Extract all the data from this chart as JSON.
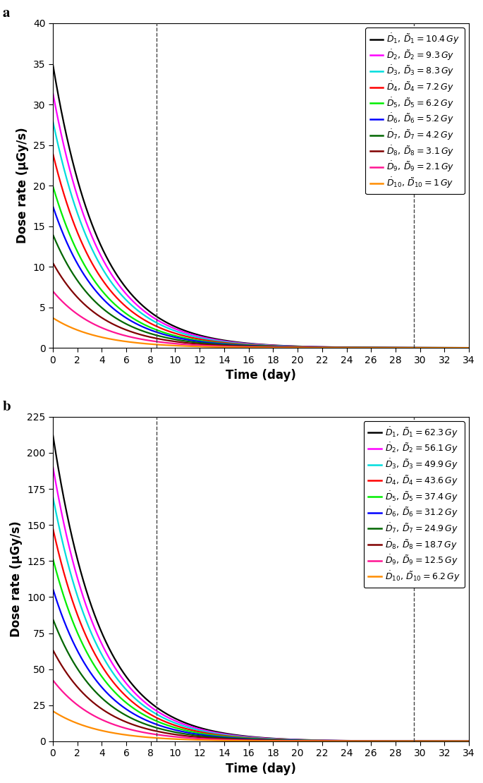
{
  "panel_a": {
    "title": "a",
    "ylabel": "Dose rate (μGy/s)",
    "xlabel": "Time (day)",
    "ylim": [
      0,
      40
    ],
    "yticks": [
      0,
      5,
      10,
      15,
      20,
      25,
      30,
      35,
      40
    ],
    "xlim": [
      0,
      34
    ],
    "xticks": [
      0,
      2,
      4,
      6,
      8,
      10,
      12,
      14,
      16,
      18,
      20,
      22,
      24,
      26,
      28,
      30,
      32,
      34
    ],
    "vlines": [
      8.5,
      29.5
    ],
    "curves": [
      {
        "color": "#000000",
        "D0": 35.0,
        "label": "$\\dot{D}_1,\\, \\tilde{D}_1 = 10.4\\,Gy$"
      },
      {
        "color": "#FF00FF",
        "D0": 31.5,
        "label": "$\\dot{D}_2,\\, \\tilde{D}_2 = 9.3\\,Gy$"
      },
      {
        "color": "#00DDDD",
        "D0": 28.0,
        "label": "$\\dot{D}_3,\\, \\tilde{D}_3 = 8.3\\,Gy$"
      },
      {
        "color": "#FF0000",
        "D0": 24.0,
        "label": "$\\dot{D}_4,\\, \\tilde{D}_4 = 7.2\\,Gy$"
      },
      {
        "color": "#00EE00",
        "D0": 20.0,
        "label": "$\\dot{D}_5,\\, \\tilde{D}_5 = 6.2\\,Gy$"
      },
      {
        "color": "#0000FF",
        "D0": 17.5,
        "label": "$\\dot{D}_6,\\, \\tilde{D}_6 = 5.2\\,Gy$"
      },
      {
        "color": "#006600",
        "D0": 14.0,
        "label": "$\\dot{D}_7,\\, \\tilde{D}_7 = 4.2\\,Gy$"
      },
      {
        "color": "#800000",
        "D0": 10.5,
        "label": "$\\dot{D}_8,\\, \\tilde{D}_8 = 3.1\\,Gy$"
      },
      {
        "color": "#FF1493",
        "D0": 7.0,
        "label": "$\\dot{D}_9,\\, \\tilde{D}_9 = 2.1\\,Gy$"
      },
      {
        "color": "#FF8C00",
        "D0": 3.7,
        "label": "$\\dot{D}_{10},\\, \\tilde{D}_{10} = 1\\,Gy$"
      }
    ]
  },
  "panel_b": {
    "title": "b",
    "ylabel": "Dose rate (μGy/s)",
    "xlabel": "Time (day)",
    "ylim": [
      0,
      225
    ],
    "yticks": [
      0,
      25,
      50,
      75,
      100,
      125,
      150,
      175,
      200,
      225
    ],
    "xlim": [
      0,
      34
    ],
    "xticks": [
      0,
      2,
      4,
      6,
      8,
      10,
      12,
      14,
      16,
      18,
      20,
      22,
      24,
      26,
      28,
      30,
      32,
      34
    ],
    "vlines": [
      8.5,
      29.5
    ],
    "curves": [
      {
        "color": "#000000",
        "D0": 213.0,
        "label": "$\\dot{D}_1,\\, \\tilde{D}_1 = 62.3\\,Gy$"
      },
      {
        "color": "#FF00FF",
        "D0": 191.0,
        "label": "$\\dot{D}_2,\\, \\tilde{D}_2 = 56.1\\,Gy$"
      },
      {
        "color": "#00DDDD",
        "D0": 170.0,
        "label": "$\\dot{D}_3,\\, \\tilde{D}_3 = 49.9\\,Gy$"
      },
      {
        "color": "#FF0000",
        "D0": 148.0,
        "label": "$\\dot{D}_4,\\, \\tilde{D}_4 = 43.6\\,Gy$"
      },
      {
        "color": "#00EE00",
        "D0": 127.0,
        "label": "$\\dot{D}_5,\\, \\tilde{D}_5 = 37.4\\,Gy$"
      },
      {
        "color": "#0000FF",
        "D0": 106.0,
        "label": "$\\dot{D}_6,\\, \\tilde{D}_6 = 31.2\\,Gy$"
      },
      {
        "color": "#006600",
        "D0": 85.0,
        "label": "$\\dot{D}_7,\\, \\tilde{D}_7 = 24.9\\,Gy$"
      },
      {
        "color": "#800000",
        "D0": 63.5,
        "label": "$\\dot{D}_8,\\, \\tilde{D}_8 = 18.7\\,Gy$"
      },
      {
        "color": "#FF1493",
        "D0": 42.5,
        "label": "$\\dot{D}_9,\\, \\tilde{D}_9 = 12.5\\,Gy$"
      },
      {
        "color": "#FF8C00",
        "D0": 21.0,
        "label": "$\\dot{D}_{10},\\, \\tilde{D}_{10} = 6.2\\,Gy$"
      }
    ]
  },
  "decay_constant": 0.2597,
  "legend_fontsize": 9.0,
  "tick_fontsize": 10,
  "label_fontsize": 12,
  "figsize": [
    6.85,
    11.1
  ],
  "dpi": 100
}
